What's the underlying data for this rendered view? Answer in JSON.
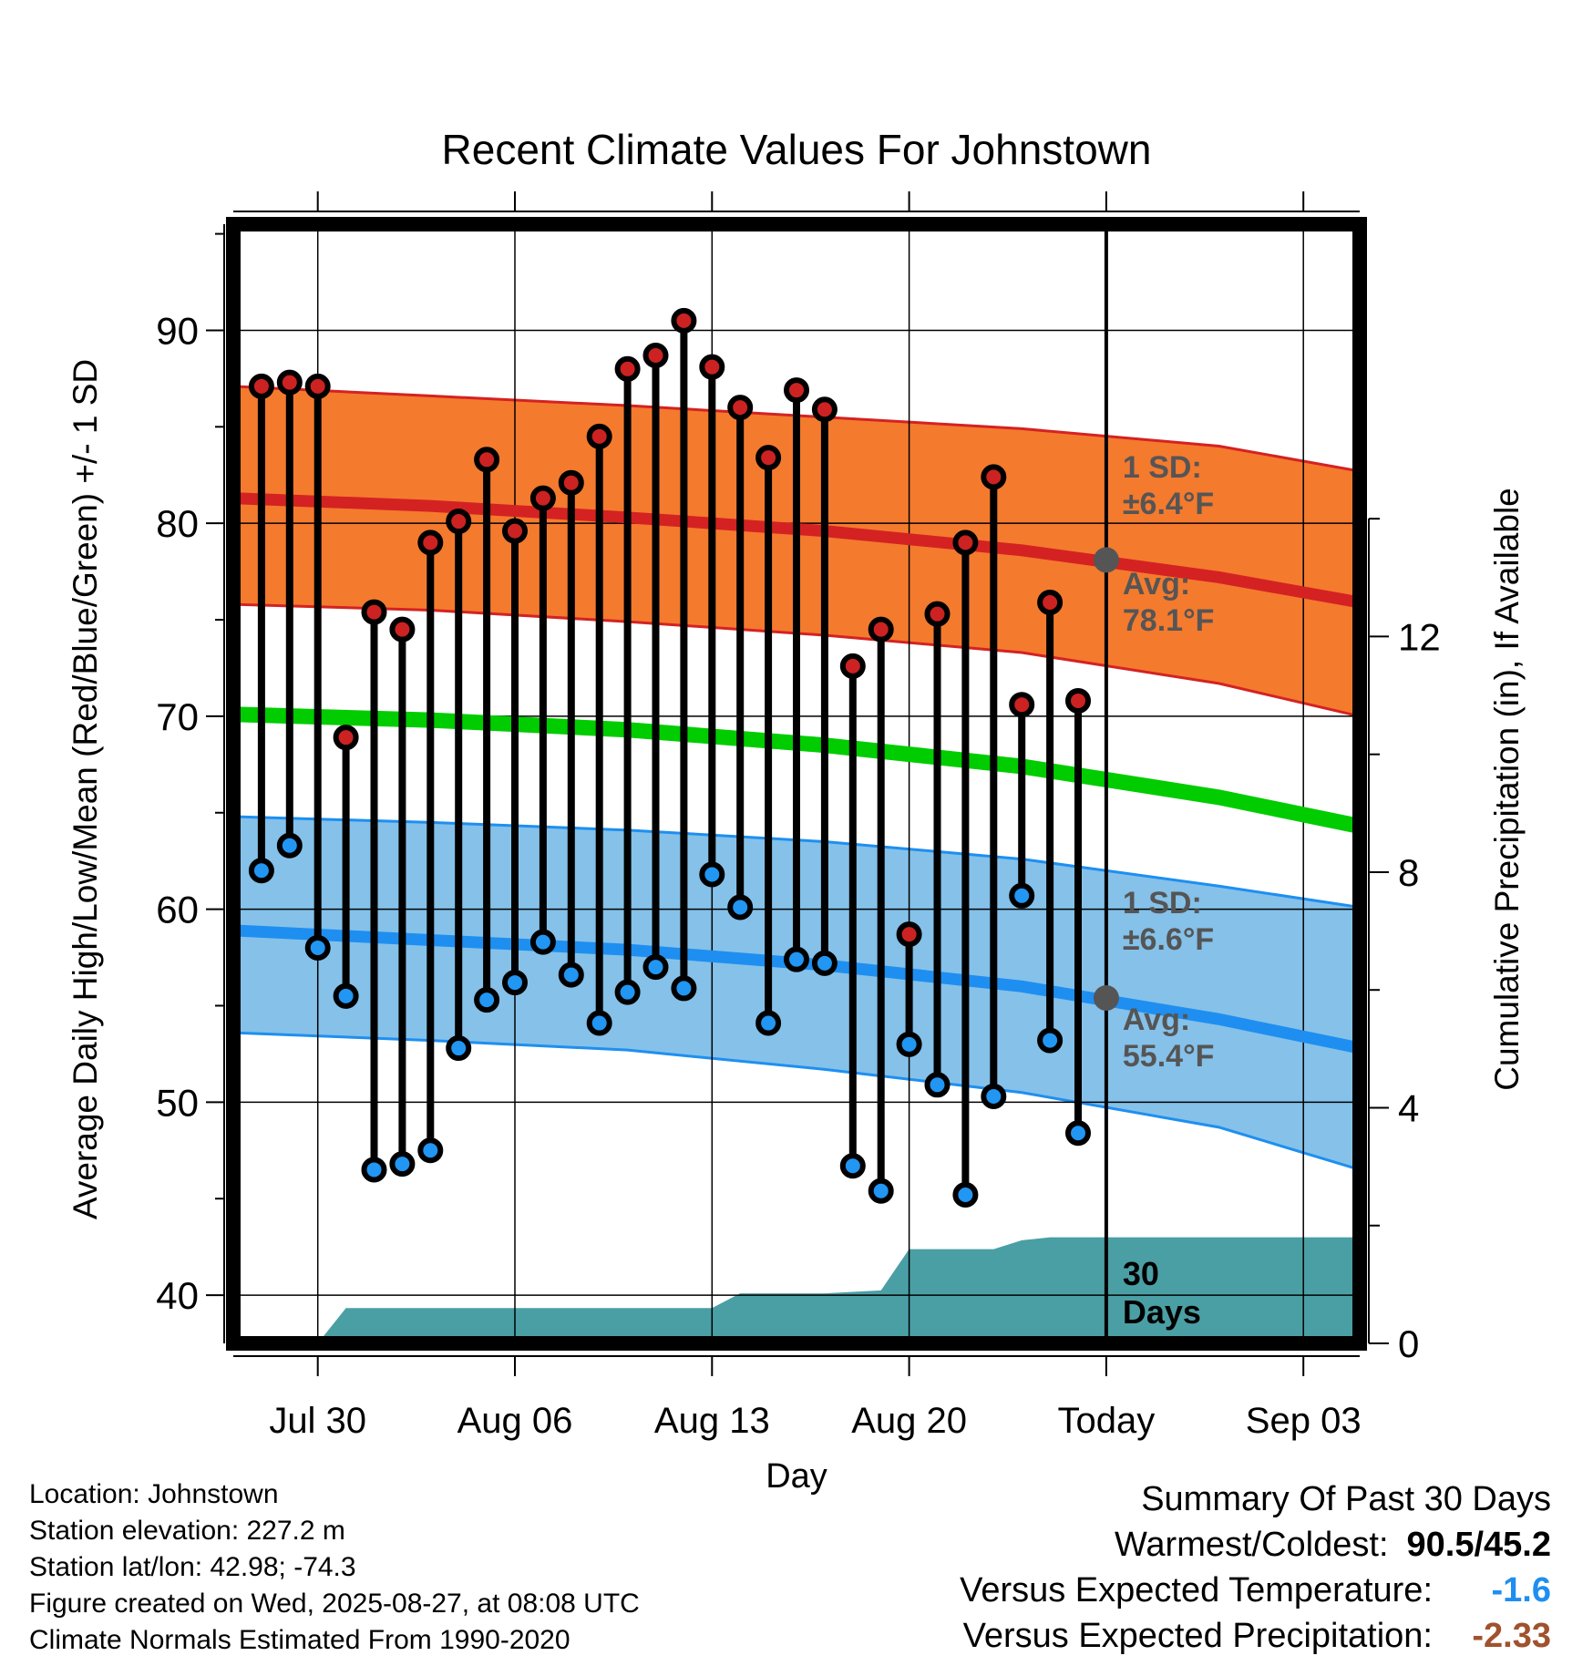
{
  "chart_data": {
    "type": "line",
    "title": "Recent Climate Values For Johnstown",
    "xlabel": "Day",
    "ylabel": "Average Daily High/Low/Mean (Red/Blue/Green) +/- 1 SD",
    "ylabel_right": "Cumulative Precipitation (in), If Available",
    "x_range": [
      "2025-07-27",
      "2025-09-05"
    ],
    "today": "2025-08-27",
    "ylim": [
      37.5,
      95.5
    ],
    "yticks": [
      40,
      50,
      60,
      70,
      80,
      90
    ],
    "y2lim": [
      0,
      19
    ],
    "y2ticks": [
      0,
      4,
      8,
      12
    ],
    "xticks": [
      {
        "date": "2025-07-30",
        "label": "Jul 30"
      },
      {
        "date": "2025-08-06",
        "label": "Aug 06"
      },
      {
        "date": "2025-08-13",
        "label": "Aug 13"
      },
      {
        "date": "2025-08-20",
        "label": "Aug 20"
      },
      {
        "date": "2025-08-27",
        "label": "Today"
      },
      {
        "date": "2025-09-03",
        "label": "Sep 03"
      }
    ],
    "grid": true,
    "colors": {
      "high_band": "#f47a2e",
      "high_edge": "#d42222",
      "low_band": "#85c1e9",
      "low_edge": "#1e8ff0",
      "mean": "#00cc00",
      "precip": "#4a9fa5",
      "high_marker": "#cc2222",
      "low_marker": "#2196f3",
      "today_marker": "#555555",
      "annotation": "#555555"
    },
    "normals": {
      "dates": [
        "2025-07-27",
        "2025-08-03",
        "2025-08-10",
        "2025-08-17",
        "2025-08-24",
        "2025-08-31",
        "2025-09-05"
      ],
      "high_avg": [
        81.3,
        80.9,
        80.3,
        79.6,
        78.6,
        77.2,
        75.9
      ],
      "high_sd_upper": [
        87.1,
        86.6,
        86.1,
        85.5,
        84.9,
        84.0,
        82.7
      ],
      "high_sd_lower": [
        75.8,
        75.5,
        74.9,
        74.2,
        73.3,
        71.7,
        70.0
      ],
      "mean": [
        70.1,
        69.8,
        69.3,
        68.5,
        67.4,
        65.8,
        64.3
      ],
      "low_avg": [
        58.9,
        58.4,
        57.9,
        57.1,
        56.0,
        54.3,
        52.8
      ],
      "low_sd_upper": [
        64.8,
        64.5,
        64.1,
        63.5,
        62.6,
        61.2,
        60.1
      ],
      "low_sd_lower": [
        53.6,
        53.2,
        52.7,
        51.7,
        50.5,
        48.7,
        46.5
      ]
    },
    "daily": {
      "dates": [
        "2025-07-28",
        "2025-07-29",
        "2025-07-30",
        "2025-07-31",
        "2025-08-01",
        "2025-08-02",
        "2025-08-03",
        "2025-08-04",
        "2025-08-05",
        "2025-08-06",
        "2025-08-07",
        "2025-08-08",
        "2025-08-09",
        "2025-08-10",
        "2025-08-11",
        "2025-08-12",
        "2025-08-13",
        "2025-08-14",
        "2025-08-15",
        "2025-08-16",
        "2025-08-17",
        "2025-08-18",
        "2025-08-19",
        "2025-08-20",
        "2025-08-21",
        "2025-08-22",
        "2025-08-23",
        "2025-08-24",
        "2025-08-25",
        "2025-08-26"
      ],
      "high": [
        87.1,
        87.3,
        87.1,
        68.9,
        75.4,
        74.5,
        79.0,
        80.1,
        83.3,
        79.6,
        81.3,
        82.1,
        84.5,
        88.0,
        88.7,
        90.5,
        88.1,
        86.0,
        83.4,
        86.9,
        85.9,
        72.6,
        74.5,
        58.7,
        75.3,
        79.0,
        82.4,
        70.6,
        75.9,
        70.8
      ],
      "low": [
        62.0,
        63.3,
        58.0,
        55.5,
        46.5,
        46.8,
        47.5,
        52.8,
        55.3,
        56.2,
        58.3,
        56.6,
        54.1,
        55.7,
        57.0,
        55.9,
        61.8,
        60.1,
        54.1,
        57.4,
        57.2,
        46.7,
        45.4,
        53.0,
        50.9,
        45.2,
        50.3,
        60.7,
        53.2,
        48.4
      ]
    },
    "precip_cumulative": {
      "dates": [
        "2025-07-27",
        "2025-07-30",
        "2025-07-31",
        "2025-08-13",
        "2025-08-14",
        "2025-08-17",
        "2025-08-19",
        "2025-08-20",
        "2025-08-23",
        "2025-08-24",
        "2025-08-25",
        "2025-09-05"
      ],
      "values": [
        0,
        0,
        0.6,
        0.6,
        0.85,
        0.85,
        0.9,
        1.6,
        1.6,
        1.75,
        1.8,
        1.8
      ]
    },
    "annotations": {
      "high_sd_label": "1 SD:",
      "high_sd_value": "±6.4°F",
      "high_avg_label": "Avg:",
      "high_avg_value": "78.1°F",
      "low_sd_label": "1 SD:",
      "low_sd_value": "±6.6°F",
      "low_avg_label": "Avg:",
      "low_avg_value": "55.4°F",
      "precip_label_1": "30",
      "precip_label_2": "Days"
    },
    "today_values": {
      "high_avg": 78.1,
      "low_avg": 55.4
    }
  },
  "location": {
    "location_line": "Location: Johnstown",
    "elevation_line": "Station elevation: 227.2 m",
    "latlon_line": "Station lat/lon: 42.98; -74.3",
    "created_line": "Figure created on Wed, 2025-08-27, at 08:08 UTC",
    "normals_line": "Climate Normals Estimated From 1990-2020"
  },
  "summary": {
    "title": "Summary Of Past 30 Days",
    "warmest_label": "Warmest/Coldest:",
    "warmest_value": "90.5/45.2",
    "temp_label": "Versus Expected Temperature:",
    "temp_value": "-1.6",
    "temp_color": "#1e8ff0",
    "precip_label": "Versus Expected Precipitation:",
    "precip_value": "-2.33",
    "precip_color": "#a0522d"
  }
}
